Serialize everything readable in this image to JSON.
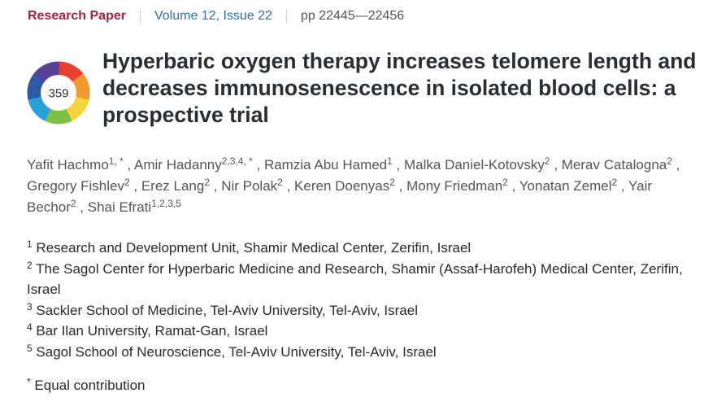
{
  "header": {
    "article_type": "Research Paper",
    "volume": "Volume 12, Issue 22",
    "pages": "pp 22445—22456"
  },
  "badge": {
    "score": "359",
    "colors": [
      "#e8402f",
      "#f29a2e",
      "#f7d33d",
      "#7cc144",
      "#2aa0d8",
      "#2f58a6",
      "#5b3f93"
    ]
  },
  "title": "Hyperbaric oxygen therapy increases telomere length and decreases immunosenescence in isolated blood cells: a prospective trial",
  "authors": [
    {
      "name": "Yafit Hachmo",
      "aff": "1, *"
    },
    {
      "name": "Amir Hadanny",
      "aff": "2,3,4, *"
    },
    {
      "name": "Ramzia Abu Hamed",
      "aff": "1"
    },
    {
      "name": "Malka Daniel-Kotovsky",
      "aff": "2"
    },
    {
      "name": "Merav Catalogna",
      "aff": "2"
    },
    {
      "name": "Gregory Fishlev",
      "aff": "2"
    },
    {
      "name": "Erez Lang",
      "aff": "2"
    },
    {
      "name": "Nir Polak",
      "aff": "2"
    },
    {
      "name": "Keren Doenyas",
      "aff": "2"
    },
    {
      "name": "Mony Friedman",
      "aff": "2"
    },
    {
      "name": "Yonatan Zemel",
      "aff": "2"
    },
    {
      "name": "Yair Bechor",
      "aff": "2"
    },
    {
      "name": "Shai Efrati",
      "aff": "1,2,3,5"
    }
  ],
  "affiliations": [
    {
      "num": "1",
      "text": "Research and Development Unit, Shamir Medical Center, Zerifin, Israel"
    },
    {
      "num": "2",
      "text": "The Sagol Center for Hyperbaric Medicine and Research, Shamir (Assaf-Harofeh) Medical Center, Zerifin, Israel"
    },
    {
      "num": "3",
      "text": "Sackler School of Medicine, Tel-Aviv University, Tel-Aviv, Israel"
    },
    {
      "num": "4",
      "text": "Bar Ilan University, Ramat-Gan, Israel"
    },
    {
      "num": "5",
      "text": "Sagol School of Neuroscience, Tel-Aviv University, Tel-Aviv, Israel"
    }
  ],
  "equal_contribution": {
    "mark": "*",
    "text": "Equal contribution"
  }
}
